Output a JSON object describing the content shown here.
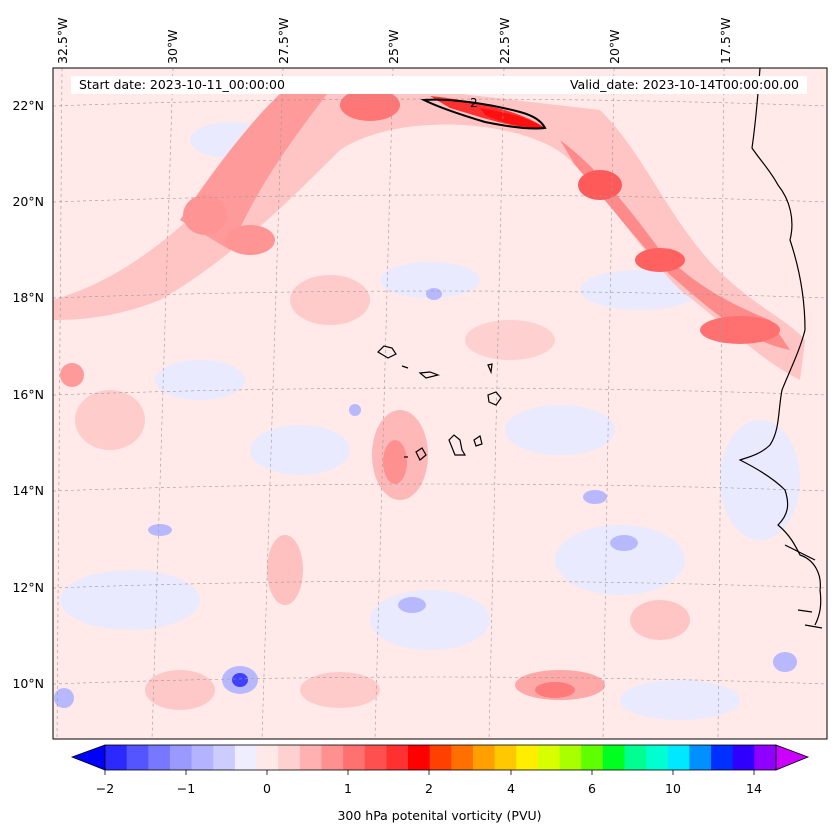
{
  "map": {
    "start_label": "Start date: 2023-10-11_00:00:00",
    "valid_label": "Valid_date: 2023-10-14T00:00:00.00",
    "contour_label": "2",
    "lon_labels": [
      "32.5°W",
      "30°W",
      "27.5°W",
      "25°W",
      "22.5°W",
      "20°W",
      "17.5°W"
    ],
    "lat_labels": [
      "22°N",
      "20°N",
      "18°N",
      "16°N",
      "14°N",
      "12°N",
      "10°N"
    ]
  },
  "colorbar": {
    "title": "300 hPa potenital vorticity (PVU)",
    "tick_labels": [
      "−2",
      "−1",
      "0",
      "1",
      "2",
      "4",
      "6",
      "10",
      "14"
    ],
    "colors": [
      "#0000ff",
      "#2a2aff",
      "#5555ff",
      "#7777ff",
      "#9999ff",
      "#b3b3ff",
      "#ccccff",
      "#eeeeff",
      "#ffe8e8",
      "#ffd0d0",
      "#ffb0b0",
      "#ff9090",
      "#ff7070",
      "#ff5050",
      "#ff3030",
      "#ff0000",
      "#ff4000",
      "#ff7000",
      "#ffa000",
      "#ffc800",
      "#ffee00",
      "#d8ff00",
      "#a8ff00",
      "#60ff00",
      "#00ff20",
      "#00ff90",
      "#00ffd0",
      "#00e8ff",
      "#0090ff",
      "#0030ff",
      "#3000ff",
      "#9000ff",
      "#cc00ff"
    ]
  }
}
